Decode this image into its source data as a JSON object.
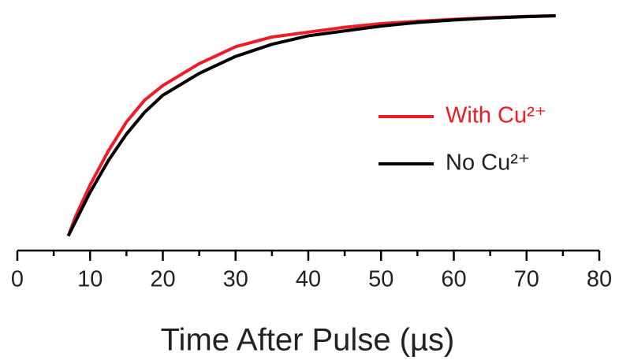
{
  "chart_data": {
    "type": "line",
    "x_label": "Time After Pulse (µs)",
    "xlim": [
      0,
      80
    ],
    "xticks": [
      0,
      10,
      20,
      30,
      40,
      50,
      60,
      70,
      80
    ],
    "xminorticks": [
      5,
      15,
      25,
      35,
      45,
      55,
      65,
      75
    ],
    "ylim": [
      0,
      1
    ],
    "legend": "right",
    "series": [
      {
        "name": "With Cu²⁺",
        "color": "#ee1c24",
        "x": [
          7,
          8,
          10,
          12.5,
          15,
          17.5,
          20,
          25,
          30,
          35,
          40,
          45,
          50,
          55,
          60,
          65,
          70,
          74
        ],
        "values": [
          0.06,
          0.14,
          0.27,
          0.41,
          0.53,
          0.62,
          0.68,
          0.77,
          0.84,
          0.88,
          0.9,
          0.92,
          0.935,
          0.945,
          0.953,
          0.96,
          0.965,
          0.968
        ]
      },
      {
        "name": "No Cu²⁺",
        "color": "#000000",
        "x": [
          7,
          8,
          10,
          12.5,
          15,
          17.5,
          20,
          25,
          30,
          35,
          40,
          45,
          50,
          55,
          60,
          65,
          70,
          74
        ],
        "values": [
          0.06,
          0.12,
          0.24,
          0.37,
          0.48,
          0.57,
          0.64,
          0.73,
          0.8,
          0.85,
          0.885,
          0.905,
          0.925,
          0.94,
          0.95,
          0.958,
          0.964,
          0.967
        ]
      }
    ]
  }
}
